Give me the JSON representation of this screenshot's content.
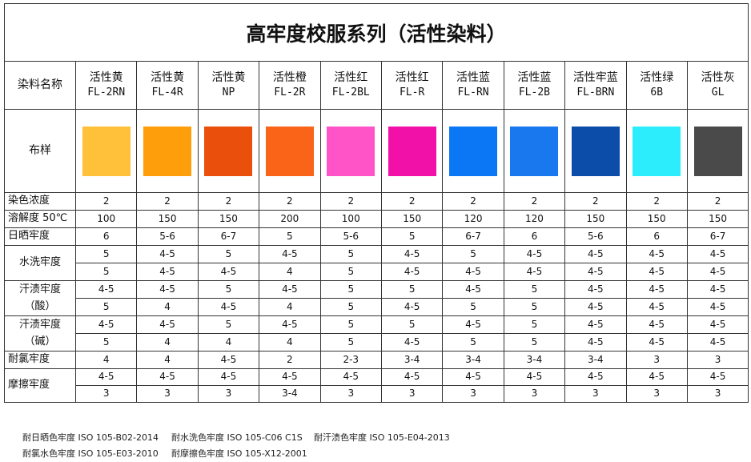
{
  "title": "高牢度校服系列（活性染料）",
  "header_label": "染料名称",
  "swatch_label": "布样",
  "dyes": [
    {
      "name": "活性黄",
      "code": "FL-2RN",
      "color": "#FFC03A"
    },
    {
      "name": "活性黄",
      "code": "FL-4R",
      "color": "#FF9E0B"
    },
    {
      "name": "活性黄",
      "code": "NP",
      "color": "#EA4F0C"
    },
    {
      "name": "活性橙",
      "code": "FL-2R",
      "color": "#FA6419"
    },
    {
      "name": "活性红",
      "code": "FL-2BL",
      "color": "#FF53C8"
    },
    {
      "name": "活性红",
      "code": "FL-R",
      "color": "#F211A8"
    },
    {
      "name": "活性蓝",
      "code": "FL-RN",
      "color": "#0C77F5"
    },
    {
      "name": "活性蓝",
      "code": "FL-2B",
      "color": "#1A78EF"
    },
    {
      "name": "活性牢蓝",
      "code": "FL-BRN",
      "color": "#0C4DA9"
    },
    {
      "name": "活性绿",
      "code": "6B",
      "color": "#2BEDFB"
    },
    {
      "name": "活性灰",
      "code": "GL",
      "color": "#4A4A4A"
    }
  ],
  "rows": [
    {
      "label": "染色浓度",
      "values": [
        "2",
        "2",
        "2",
        "2",
        "2",
        "2",
        "2",
        "2",
        "2",
        "2",
        "2"
      ]
    },
    {
      "label": "溶解度 50℃",
      "values": [
        "100",
        "150",
        "150",
        "200",
        "100",
        "150",
        "120",
        "120",
        "150",
        "150",
        "150"
      ]
    },
    {
      "label": "日晒牢度",
      "values": [
        "6",
        "5-6",
        "6-7",
        "5",
        "5-6",
        "5",
        "6-7",
        "6",
        "5-6",
        "6",
        "6-7"
      ]
    }
  ],
  "groups": [
    {
      "label": "水洗牢度",
      "rows": [
        [
          "5",
          "4-5",
          "5",
          "4-5",
          "5",
          "4-5",
          "5",
          "4-5",
          "4-5",
          "4-5",
          "4-5"
        ],
        [
          "5",
          "4-5",
          "4-5",
          "4",
          "5",
          "4-5",
          "4-5",
          "4-5",
          "4-5",
          "4-5",
          "4-5"
        ]
      ]
    },
    {
      "label": "汗渍牢度",
      "label2": "（酸）",
      "rows": [
        [
          "4-5",
          "4-5",
          "5",
          "4-5",
          "5",
          "5",
          "4-5",
          "5",
          "4-5",
          "4-5",
          "4-5"
        ],
        [
          "5",
          "4",
          "4-5",
          "4",
          "5",
          "4-5",
          "5",
          "5",
          "4-5",
          "4-5",
          "4-5"
        ]
      ]
    },
    {
      "label": "汗渍牢度",
      "label2": "（碱）",
      "rows": [
        [
          "4-5",
          "4-5",
          "5",
          "4-5",
          "5",
          "5",
          "4-5",
          "5",
          "4-5",
          "4-5",
          "4-5"
        ],
        [
          "5",
          "4",
          "4",
          "4",
          "5",
          "4-5",
          "5",
          "5",
          "4-5",
          "4-5",
          "4-5"
        ]
      ]
    }
  ],
  "chlorine": {
    "label": "耐氯牢度",
    "values": [
      "4",
      "4",
      "4-5",
      "2",
      "2-3",
      "3-4",
      "3-4",
      "3-4",
      "3-4",
      "3",
      "3"
    ]
  },
  "rubbing": {
    "label": "摩擦牢度",
    "rows": [
      [
        "4-5",
        "4-5",
        "4-5",
        "4-5",
        "4-5",
        "4-5",
        "4-5",
        "4-5",
        "4-5",
        "4-5",
        "4-5"
      ],
      [
        "3",
        "3",
        "3",
        "3-4",
        "3",
        "3",
        "3",
        "3",
        "3",
        "3",
        "3"
      ]
    ]
  },
  "footer": [
    "耐日晒色牢度 ISO 105-B02-2014",
    "耐水洗色牢度 ISO 105-C06 C1S",
    "耐汗渍色牢度 ISO 105-E04-2013",
    "耐氯水色牢度 ISO 105-E03-2010",
    "耐摩擦色牢度 ISO 105-X12-2001"
  ]
}
